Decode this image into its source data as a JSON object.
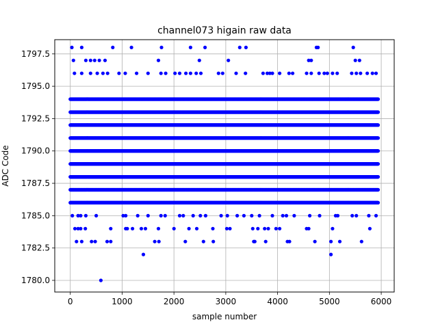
{
  "chart_data": {
    "type": "scatter",
    "title": "channel073 higain raw data",
    "xlabel": "sample number",
    "ylabel": "ADC Code",
    "xlim": [
      -300,
      6250
    ],
    "ylim": [
      1779.1,
      1798.6
    ],
    "xticks": [
      0,
      1000,
      2000,
      3000,
      4000,
      5000,
      6000
    ],
    "xtick_labels": [
      "0",
      "1000",
      "2000",
      "3000",
      "4000",
      "5000",
      "6000"
    ],
    "yticks": [
      1780.0,
      1782.5,
      1785.0,
      1787.5,
      1790.0,
      1792.5,
      1795.0,
      1797.5
    ],
    "ytick_labels": [
      "1780.0",
      "1782.5",
      "1785.0",
      "1787.5",
      "1790.0",
      "1792.5",
      "1795.0",
      "1797.5"
    ],
    "grid": true,
    "marker_color": "#0000ff",
    "series": [
      {
        "bands": [
          {
            "y": 1786,
            "x_range": [
              0,
              5940
            ]
          },
          {
            "y": 1787,
            "x_range": [
              0,
              5940
            ]
          },
          {
            "y": 1788,
            "x_range": [
              0,
              5940
            ]
          },
          {
            "y": 1789,
            "x_range": [
              0,
              5940
            ]
          },
          {
            "y": 1790,
            "x_range": [
              0,
              5940
            ]
          },
          {
            "y": 1791,
            "x_range": [
              0,
              5940
            ]
          },
          {
            "y": 1792,
            "x_range": [
              0,
              5940
            ]
          },
          {
            "y": 1793,
            "x_range": [
              0,
              5940
            ]
          },
          {
            "y": 1794,
            "x_range": [
              0,
              5940
            ]
          }
        ],
        "points": [
          [
            30,
            1798
          ],
          [
            220,
            1798
          ],
          [
            820,
            1798
          ],
          [
            1180,
            1798
          ],
          [
            1760,
            1798
          ],
          [
            2320,
            1798
          ],
          [
            2600,
            1798
          ],
          [
            3270,
            1798
          ],
          [
            3390,
            1798
          ],
          [
            4750,
            1798
          ],
          [
            4780,
            1798
          ],
          [
            5460,
            1798
          ],
          [
            60,
            1797
          ],
          [
            300,
            1797
          ],
          [
            390,
            1797
          ],
          [
            470,
            1797
          ],
          [
            560,
            1797
          ],
          [
            670,
            1797
          ],
          [
            1700,
            1797
          ],
          [
            2490,
            1797
          ],
          [
            3050,
            1797
          ],
          [
            4600,
            1797
          ],
          [
            4650,
            1797
          ],
          [
            5500,
            1797
          ],
          [
            5580,
            1797
          ],
          [
            80,
            1796
          ],
          [
            220,
            1796
          ],
          [
            390,
            1796
          ],
          [
            520,
            1796
          ],
          [
            630,
            1796
          ],
          [
            720,
            1796
          ],
          [
            940,
            1796
          ],
          [
            1060,
            1796
          ],
          [
            1280,
            1796
          ],
          [
            1500,
            1796
          ],
          [
            1750,
            1796
          ],
          [
            1840,
            1796
          ],
          [
            2020,
            1796
          ],
          [
            2110,
            1796
          ],
          [
            2230,
            1796
          ],
          [
            2320,
            1796
          ],
          [
            2430,
            1796
          ],
          [
            2520,
            1796
          ],
          [
            2860,
            1796
          ],
          [
            2940,
            1796
          ],
          [
            3200,
            1796
          ],
          [
            3380,
            1796
          ],
          [
            3720,
            1796
          ],
          [
            3800,
            1796
          ],
          [
            3850,
            1796
          ],
          [
            3900,
            1796
          ],
          [
            4040,
            1796
          ],
          [
            4220,
            1796
          ],
          [
            4290,
            1796
          ],
          [
            4560,
            1796
          ],
          [
            4650,
            1796
          ],
          [
            4800,
            1796
          ],
          [
            4900,
            1796
          ],
          [
            4960,
            1796
          ],
          [
            5060,
            1796
          ],
          [
            5150,
            1796
          ],
          [
            5430,
            1796
          ],
          [
            5520,
            1796
          ],
          [
            5600,
            1796
          ],
          [
            5730,
            1796
          ],
          [
            5830,
            1796
          ],
          [
            5900,
            1796
          ],
          [
            40,
            1785
          ],
          [
            150,
            1785
          ],
          [
            200,
            1785
          ],
          [
            300,
            1785
          ],
          [
            500,
            1785
          ],
          [
            1020,
            1785
          ],
          [
            1070,
            1785
          ],
          [
            1300,
            1785
          ],
          [
            1500,
            1785
          ],
          [
            1750,
            1785
          ],
          [
            1830,
            1785
          ],
          [
            2110,
            1785
          ],
          [
            2180,
            1785
          ],
          [
            2370,
            1785
          ],
          [
            2510,
            1785
          ],
          [
            2610,
            1785
          ],
          [
            2910,
            1785
          ],
          [
            3030,
            1785
          ],
          [
            3220,
            1785
          ],
          [
            3350,
            1785
          ],
          [
            3500,
            1785
          ],
          [
            3650,
            1785
          ],
          [
            3900,
            1785
          ],
          [
            4100,
            1785
          ],
          [
            4170,
            1785
          ],
          [
            4320,
            1785
          ],
          [
            4620,
            1785
          ],
          [
            4810,
            1785
          ],
          [
            5120,
            1785
          ],
          [
            5160,
            1785
          ],
          [
            5440,
            1785
          ],
          [
            5520,
            1785
          ],
          [
            5760,
            1785
          ],
          [
            5900,
            1785
          ],
          [
            90,
            1784
          ],
          [
            150,
            1784
          ],
          [
            200,
            1784
          ],
          [
            290,
            1784
          ],
          [
            780,
            1784
          ],
          [
            1070,
            1784
          ],
          [
            1100,
            1784
          ],
          [
            1200,
            1784
          ],
          [
            1370,
            1784
          ],
          [
            1450,
            1784
          ],
          [
            1700,
            1784
          ],
          [
            2000,
            1784
          ],
          [
            2290,
            1784
          ],
          [
            2440,
            1784
          ],
          [
            2750,
            1784
          ],
          [
            3020,
            1784
          ],
          [
            3080,
            1784
          ],
          [
            3520,
            1784
          ],
          [
            3620,
            1784
          ],
          [
            3750,
            1784
          ],
          [
            3820,
            1784
          ],
          [
            3970,
            1784
          ],
          [
            4040,
            1784
          ],
          [
            4560,
            1784
          ],
          [
            4600,
            1784
          ],
          [
            5060,
            1784
          ],
          [
            5780,
            1784
          ],
          [
            120,
            1783
          ],
          [
            220,
            1783
          ],
          [
            410,
            1783
          ],
          [
            480,
            1783
          ],
          [
            710,
            1783
          ],
          [
            780,
            1783
          ],
          [
            1630,
            1783
          ],
          [
            1710,
            1783
          ],
          [
            2220,
            1783
          ],
          [
            2570,
            1783
          ],
          [
            2760,
            1783
          ],
          [
            3540,
            1783
          ],
          [
            3560,
            1783
          ],
          [
            3770,
            1783
          ],
          [
            4190,
            1783
          ],
          [
            4230,
            1783
          ],
          [
            4720,
            1783
          ],
          [
            5030,
            1783
          ],
          [
            5200,
            1783
          ],
          [
            5620,
            1783
          ],
          [
            1410,
            1782
          ],
          [
            5030,
            1782
          ],
          [
            590,
            1780
          ]
        ]
      }
    ]
  }
}
